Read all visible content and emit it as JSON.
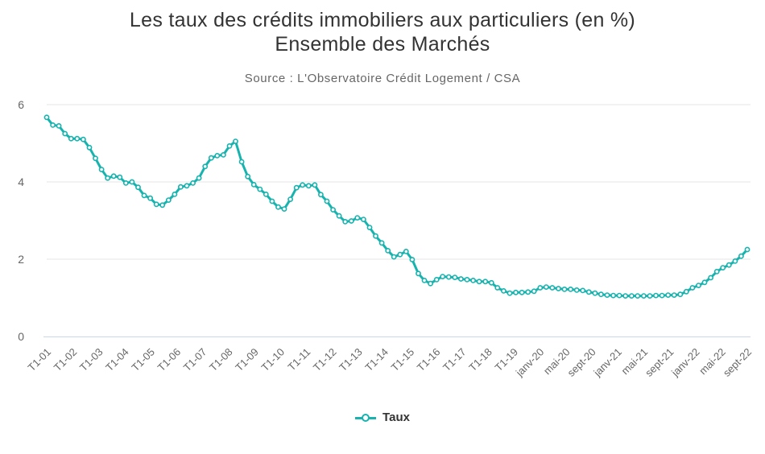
{
  "chart_data": {
    "type": "line",
    "title_line1": "Les taux des crédits immobiliers aux particuliers (en %)",
    "title_line2": "Ensemble des Marchés",
    "subtitle": "Source : L'Observatoire Crédit Logement / CSA",
    "xlabel": "",
    "ylabel": "",
    "ylim": [
      0,
      6
    ],
    "y_ticks": [
      0,
      2,
      4,
      6
    ],
    "grid": true,
    "legend_position": "bottom-center",
    "color": "#17b3ae",
    "x_tick_labels": [
      "T1-01",
      "T1-02",
      "T1-03",
      "T1-04",
      "T1-05",
      "T1-06",
      "T1-07",
      "T1-08",
      "T1-09",
      "T1-10",
      "T1-11",
      "T1-12",
      "T1-13",
      "T1-14",
      "T1-15",
      "T1-16",
      "T1-17",
      "T1-18",
      "T1-19",
      "janv-20",
      "mai-20",
      "sept-20",
      "janv-21",
      "mai-21",
      "sept-21",
      "janv-22",
      "mai-22",
      "sept-22"
    ],
    "series": [
      {
        "name": "Taux",
        "values": [
          5.67,
          5.47,
          5.45,
          5.25,
          5.12,
          5.12,
          5.1,
          4.89,
          4.61,
          4.32,
          4.1,
          4.15,
          4.12,
          3.97,
          4.0,
          3.86,
          3.65,
          3.58,
          3.42,
          3.4,
          3.53,
          3.68,
          3.87,
          3.9,
          3.97,
          4.1,
          4.4,
          4.62,
          4.68,
          4.7,
          4.93,
          5.05,
          4.52,
          4.14,
          3.93,
          3.81,
          3.68,
          3.5,
          3.35,
          3.3,
          3.55,
          3.85,
          3.92,
          3.9,
          3.92,
          3.67,
          3.5,
          3.28,
          3.12,
          2.97,
          2.99,
          3.07,
          3.03,
          2.82,
          2.6,
          2.42,
          2.22,
          2.06,
          2.12,
          2.2,
          1.99,
          1.63,
          1.45,
          1.37,
          1.47,
          1.55,
          1.54,
          1.53,
          1.49,
          1.47,
          1.45,
          1.42,
          1.42,
          1.39,
          1.26,
          1.18,
          1.12,
          1.14,
          1.14,
          1.15,
          1.17,
          1.26,
          1.28,
          1.26,
          1.24,
          1.22,
          1.22,
          1.2,
          1.19,
          1.15,
          1.12,
          1.09,
          1.07,
          1.06,
          1.06,
          1.05,
          1.05,
          1.05,
          1.05,
          1.05,
          1.06,
          1.06,
          1.07,
          1.07,
          1.09,
          1.16,
          1.26,
          1.32,
          1.4,
          1.52,
          1.68,
          1.78,
          1.85,
          1.95,
          2.08,
          2.25
        ]
      }
    ]
  }
}
